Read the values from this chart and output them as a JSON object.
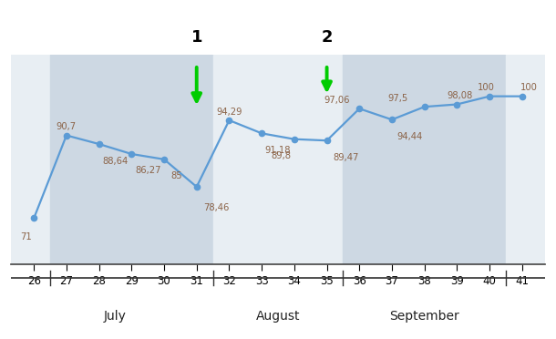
{
  "weeks": [
    26,
    27,
    28,
    29,
    30,
    31,
    32,
    33,
    34,
    35,
    36,
    37,
    38,
    39,
    40,
    41
  ],
  "values": [
    71,
    90.7,
    88.64,
    86.27,
    85,
    78.46,
    94.29,
    91.18,
    89.8,
    89.47,
    97.06,
    94.44,
    97.5,
    98.08,
    100,
    100
  ],
  "labels": [
    "71",
    "90,7",
    "88,64",
    "86,27",
    "85",
    "78,46",
    "94,29",
    "91,18",
    "89,8",
    "89,47",
    "97,06",
    "94,44",
    "97,5",
    "98,08",
    "100",
    "100"
  ],
  "line_color": "#5b9bd5",
  "marker_color": "#5b9bd5",
  "label_color": "#8B6347",
  "fig_bg": "#ffffff",
  "plot_bg": "#ffffff",
  "band_colors": [
    {
      "xmin": 25.3,
      "xmax": 26.5,
      "color": "#e8eef3"
    },
    {
      "xmin": 26.5,
      "xmax": 31.5,
      "color": "#cdd8e3"
    },
    {
      "xmin": 31.5,
      "xmax": 35.5,
      "color": "#e8eef3"
    },
    {
      "xmin": 35.5,
      "xmax": 40.5,
      "color": "#cdd8e3"
    },
    {
      "xmin": 40.5,
      "xmax": 41.7,
      "color": "#e8eef3"
    }
  ],
  "month_labels": [
    {
      "label": "July",
      "x": 28.5
    },
    {
      "label": "August",
      "x": 33.5
    },
    {
      "label": "September",
      "x": 38.0
    }
  ],
  "month_ranges": [
    {
      "xmin": 26.5,
      "xmax": 31.5
    },
    {
      "xmin": 31.5,
      "xmax": 35.5
    },
    {
      "xmin": 35.5,
      "xmax": 40.5
    }
  ],
  "arrows": [
    {
      "x": 31,
      "num": "1"
    },
    {
      "x": 35,
      "num": "2"
    }
  ],
  "label_offsets": {
    "26": [
      -0.05,
      -4.5,
      "right"
    ],
    "27": [
      0.0,
      2.0,
      "center"
    ],
    "28": [
      0.1,
      -4.0,
      "left"
    ],
    "29": [
      0.1,
      -4.0,
      "left"
    ],
    "30": [
      0.2,
      -4.0,
      "left"
    ],
    "31": [
      0.2,
      -5.0,
      "left"
    ],
    "32": [
      0.0,
      2.0,
      "center"
    ],
    "33": [
      0.1,
      -4.0,
      "left"
    ],
    "34": [
      -0.1,
      -4.0,
      "right"
    ],
    "35": [
      0.2,
      -4.0,
      "left"
    ],
    "36": [
      -0.3,
      2.0,
      "right"
    ],
    "37": [
      0.15,
      -4.0,
      "left"
    ],
    "38": [
      -0.5,
      2.0,
      "right"
    ],
    "39": [
      0.1,
      2.0,
      "center"
    ],
    "40": [
      -0.1,
      2.0,
      "center"
    ],
    "41": [
      0.2,
      2.0,
      "center"
    ]
  },
  "ylim": [
    60,
    110
  ],
  "xlim": [
    25.3,
    41.7
  ],
  "figsize": [
    6.1,
    3.72
  ],
  "dpi": 100
}
